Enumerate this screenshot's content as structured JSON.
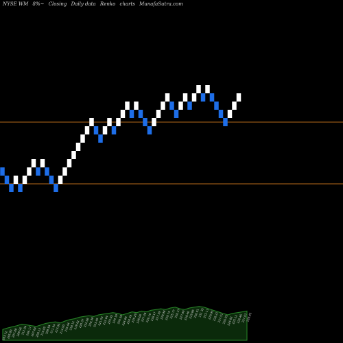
{
  "header": {
    "ticker": "NYSE WM",
    "change": "8%~",
    "label_closing": "Closing",
    "label_daily": "Daily data",
    "label_type": "Renko",
    "label_charts": "charts",
    "site": "MunafaSutra.com"
  },
  "colors": {
    "background": "#000000",
    "up_brick": "#ffffff",
    "down_brick": "#1e6ee8",
    "level_line": "#b86a1a",
    "volume_area": "#0b2a0b",
    "volume_line": "#2a8a2a",
    "volume_label": "#cfcfcf"
  },
  "chart_data": {
    "type": "renko",
    "brick_size": 4,
    "levels": [
      222,
      207
    ],
    "ylim": [
      195,
      237
    ],
    "bricks": [
      {
        "close": 210,
        "dir": "down"
      },
      {
        "close": 208,
        "dir": "down"
      },
      {
        "close": 206,
        "dir": "down"
      },
      {
        "close": 208,
        "dir": "up"
      },
      {
        "close": 206,
        "dir": "down"
      },
      {
        "close": 208,
        "dir": "up"
      },
      {
        "close": 210,
        "dir": "up"
      },
      {
        "close": 212,
        "dir": "up"
      },
      {
        "close": 210,
        "dir": "down"
      },
      {
        "close": 212,
        "dir": "up"
      },
      {
        "close": 210,
        "dir": "down"
      },
      {
        "close": 208,
        "dir": "down"
      },
      {
        "close": 206,
        "dir": "down"
      },
      {
        "close": 208,
        "dir": "up"
      },
      {
        "close": 210,
        "dir": "up"
      },
      {
        "close": 212,
        "dir": "up"
      },
      {
        "close": 214,
        "dir": "up"
      },
      {
        "close": 216,
        "dir": "up"
      },
      {
        "close": 218,
        "dir": "up"
      },
      {
        "close": 220,
        "dir": "up"
      },
      {
        "close": 222,
        "dir": "up"
      },
      {
        "close": 220,
        "dir": "down"
      },
      {
        "close": 218,
        "dir": "down"
      },
      {
        "close": 220,
        "dir": "up"
      },
      {
        "close": 222,
        "dir": "up"
      },
      {
        "close": 220,
        "dir": "down"
      },
      {
        "close": 222,
        "dir": "up"
      },
      {
        "close": 224,
        "dir": "up"
      },
      {
        "close": 226,
        "dir": "up"
      },
      {
        "close": 224,
        "dir": "down"
      },
      {
        "close": 226,
        "dir": "up"
      },
      {
        "close": 224,
        "dir": "down"
      },
      {
        "close": 222,
        "dir": "down"
      },
      {
        "close": 220,
        "dir": "down"
      },
      {
        "close": 222,
        "dir": "up"
      },
      {
        "close": 224,
        "dir": "up"
      },
      {
        "close": 226,
        "dir": "up"
      },
      {
        "close": 228,
        "dir": "up"
      },
      {
        "close": 226,
        "dir": "down"
      },
      {
        "close": 224,
        "dir": "down"
      },
      {
        "close": 226,
        "dir": "up"
      },
      {
        "close": 228,
        "dir": "up"
      },
      {
        "close": 226,
        "dir": "down"
      },
      {
        "close": 228,
        "dir": "up"
      },
      {
        "close": 230,
        "dir": "up"
      },
      {
        "close": 228,
        "dir": "down"
      },
      {
        "close": 230,
        "dir": "up"
      },
      {
        "close": 228,
        "dir": "down"
      },
      {
        "close": 226,
        "dir": "down"
      },
      {
        "close": 224,
        "dir": "down"
      },
      {
        "close": 222,
        "dir": "down"
      },
      {
        "close": 224,
        "dir": "up"
      },
      {
        "close": 226,
        "dir": "up"
      },
      {
        "close": 228,
        "dir": "up"
      }
    ],
    "volume_labels": [
      "203.72",
      "205.80",
      "207.88",
      "209.96",
      "212.04",
      "206.17",
      "207.64",
      "208.13",
      "210.05",
      "209.84",
      "211.94",
      "213.05",
      "214.50",
      "216.44",
      "218.12",
      "219.62",
      "220.37",
      "222.08",
      "220.38",
      "223.49",
      "221.53",
      "222.64",
      "225.02",
      "224.19",
      "226.30",
      "224.69",
      "224.39",
      "225.20",
      "226.06",
      "227.38",
      "226.10",
      "228.17",
      "227.39",
      "228.98",
      "229.74",
      "225.77",
      "226.37",
      "227.00",
      "228.46",
      "229.86",
      "230.01",
      "231.32",
      "232.11",
      "229.95",
      "228.21",
      "227.51",
      "226.03",
      "224.82",
      "225.12",
      "226.46",
      "227.07",
      "228.45"
    ],
    "volume_levels": [
      0.28,
      0.32,
      0.35,
      0.38,
      0.42,
      0.4,
      0.38,
      0.36,
      0.4,
      0.44,
      0.46,
      0.48,
      0.45,
      0.5,
      0.54,
      0.56,
      0.6,
      0.62,
      0.64,
      0.62,
      0.66,
      0.68,
      0.7,
      0.72,
      0.7,
      0.66,
      0.7,
      0.74,
      0.72,
      0.76,
      0.74,
      0.78,
      0.8,
      0.82,
      0.8,
      0.84,
      0.86,
      0.82,
      0.8,
      0.84,
      0.86,
      0.88,
      0.86,
      0.82,
      0.78,
      0.74,
      0.7,
      0.66,
      0.7,
      0.72,
      0.74,
      0.76
    ]
  }
}
